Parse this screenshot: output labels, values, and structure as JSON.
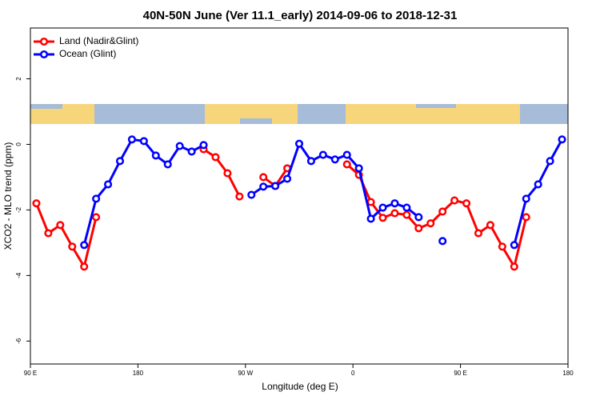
{
  "chart_data": {
    "type": "line",
    "title": "40N-50N June (Ver 11.1_early)   2014-09-06 to 2018-12-31",
    "xlabel": "Longitude (deg E)",
    "ylabel": "XCO2 - MLO trend (ppm)",
    "x": [
      95,
      105,
      115,
      125,
      135,
      145,
      155,
      165,
      175,
      185,
      195,
      205,
      215,
      225,
      235,
      245,
      255,
      265,
      275,
      285,
      295,
      305,
      315,
      325,
      335,
      345,
      355,
      365,
      375,
      385,
      395,
      405,
      415,
      425,
      435,
      445,
      455,
      465,
      475,
      485,
      495,
      505,
      515,
      525,
      535
    ],
    "series": [
      {
        "name": "Land (Nadir&Glint)",
        "color": "#ff0000",
        "values": [
          -1.8,
          -2.71,
          -2.46,
          -3.12,
          -3.73,
          -2.22,
          null,
          null,
          null,
          null,
          null,
          null,
          null,
          null,
          -0.15,
          -0.39,
          -0.88,
          -1.59,
          null,
          -1.0,
          -1.27,
          -0.73,
          null,
          null,
          null,
          null,
          -0.61,
          -0.93,
          -1.76,
          -2.24,
          -2.1,
          -2.15,
          -2.56,
          -2.41,
          -2.05,
          -1.71,
          -1.8,
          -2.71,
          -2.46,
          -3.12,
          -3.73,
          -2.22,
          null,
          null,
          null
        ]
      },
      {
        "name": "Ocean (Glint)",
        "color": "#0000ff",
        "values": [
          null,
          null,
          null,
          null,
          -3.07,
          -1.66,
          -1.22,
          -0.51,
          0.15,
          0.1,
          -0.34,
          -0.61,
          -0.05,
          -0.22,
          -0.02,
          null,
          null,
          null,
          -1.54,
          -1.29,
          -1.27,
          -1.05,
          0.02,
          -0.51,
          -0.32,
          -0.46,
          -0.32,
          -0.73,
          -2.27,
          -1.93,
          -1.8,
          -1.93,
          -2.22,
          null,
          -2.95,
          null,
          null,
          null,
          null,
          null,
          -3.07,
          -1.66,
          -1.22,
          -0.51,
          0.15
        ]
      }
    ],
    "xlim": [
      90,
      540
    ],
    "xticks": [
      {
        "value": 90,
        "label": "90 E"
      },
      {
        "value": 180,
        "label": "180"
      },
      {
        "value": 270,
        "label": "90 W"
      },
      {
        "value": 360,
        "label": "0"
      },
      {
        "value": 450,
        "label": "90 E"
      },
      {
        "value": 540,
        "label": "180"
      }
    ],
    "ylim": [
      -6.7,
      3.55
    ],
    "yticks": [
      -6,
      -4,
      -2,
      0,
      2
    ],
    "legend": "top-left"
  }
}
